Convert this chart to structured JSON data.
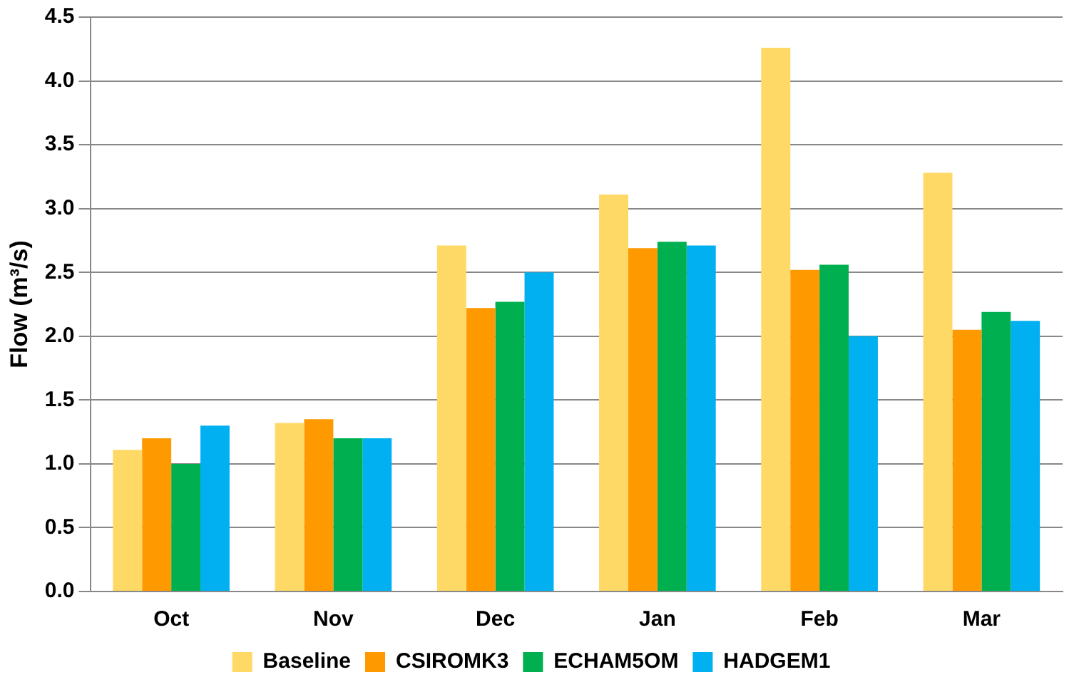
{
  "chart_data": {
    "type": "bar",
    "ylabel": "Flow (m³/s)",
    "categories": [
      "Oct",
      "Nov",
      "Dec",
      "Jan",
      "Feb",
      "Mar"
    ],
    "series": [
      {
        "name": "Baseline",
        "color": "#ffd966",
        "values": [
          1.11,
          1.32,
          2.71,
          3.11,
          4.26,
          3.28
        ]
      },
      {
        "name": "CSIROMK3",
        "color": "#ff9900",
        "values": [
          1.2,
          1.35,
          2.22,
          2.69,
          2.52,
          2.05
        ]
      },
      {
        "name": "ECHAM5OM",
        "color": "#00b050",
        "values": [
          1.0,
          1.2,
          2.27,
          2.74,
          2.56,
          2.19
        ]
      },
      {
        "name": "HADGEM1",
        "color": "#00b0f0",
        "values": [
          1.3,
          1.2,
          2.5,
          2.71,
          2.0,
          2.12
        ]
      }
    ],
    "ylim": [
      0,
      4.5
    ],
    "yticks": [
      {
        "value": 0,
        "label": "0.0"
      },
      0.5,
      {
        "value": 1,
        "label": "1.0"
      },
      1.5,
      {
        "value": 2,
        "label": "2.0"
      },
      2.5,
      {
        "value": 3,
        "label": "3.0"
      },
      3.5,
      {
        "value": 4,
        "label": "4.0"
      },
      4.5
    ],
    "grid": "y",
    "legend": "bottom"
  }
}
